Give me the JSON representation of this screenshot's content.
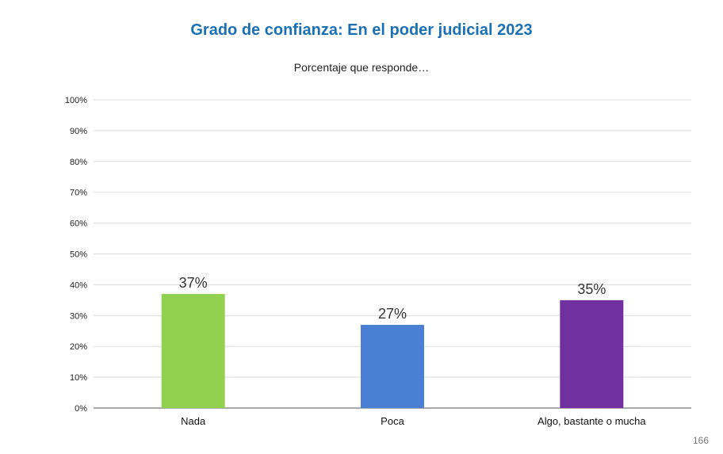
{
  "slide": {
    "page_number": "166"
  },
  "chart_data": {
    "type": "bar",
    "title": "Grado de confianza: En el poder judicial 2023",
    "subtitle": "Porcentaje que responde…",
    "categories": [
      "Nada",
      "Poca",
      "Algo, bastante o mucha"
    ],
    "values": [
      37,
      27,
      35
    ],
    "data_labels": [
      "37%",
      "27%",
      "35%"
    ],
    "colors": [
      "#92d050",
      "#4a7fd4",
      "#7030a0"
    ],
    "ylim": [
      0,
      100
    ],
    "y_ticks": [
      0,
      10,
      20,
      30,
      40,
      50,
      60,
      70,
      80,
      90,
      100
    ],
    "y_tick_labels": [
      "0%",
      "10%",
      "20%",
      "30%",
      "40%",
      "50%",
      "60%",
      "70%",
      "80%",
      "90%",
      "100%"
    ],
    "grid": true,
    "gridline_color": "#d9d9d9",
    "axis_color": "#555555",
    "title_color": "#1a6fb5",
    "xlabel": "",
    "ylabel": ""
  }
}
